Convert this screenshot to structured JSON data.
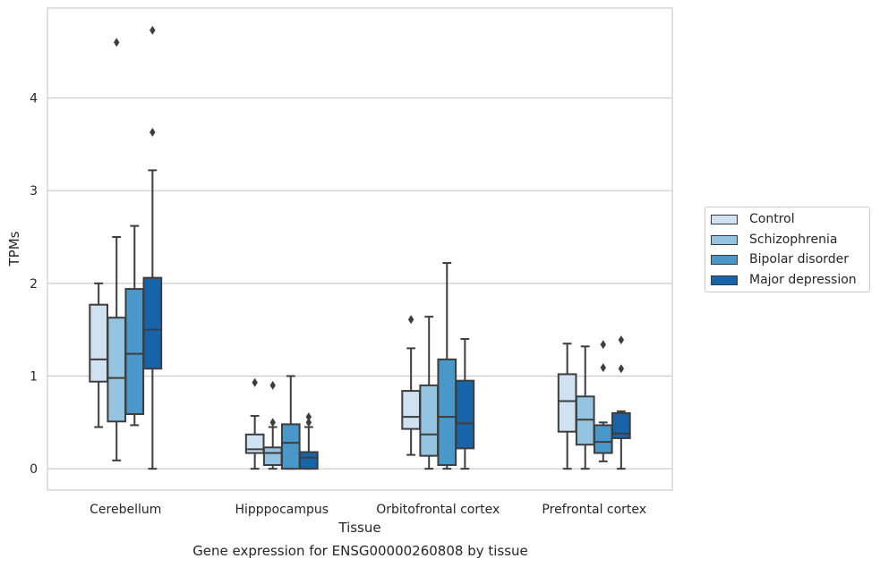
{
  "caption": "Gene expression for ENSG00000260808 by tissue",
  "chart_data": {
    "type": "box",
    "xlabel": "Tissue",
    "ylabel": "TPMs",
    "ylim": [
      -0.23,
      4.97
    ],
    "yticks": [
      0,
      1,
      2,
      3,
      4
    ],
    "grid": "horizontal",
    "legend_position": "right",
    "categories": [
      "Cerebellum",
      "Hipppocampus",
      "Orbitofrontal cortex",
      "Prefrontal cortex"
    ],
    "series": [
      {
        "name": "Control",
        "color": "#d0e1f2",
        "boxes": [
          {
            "whislo": 0.45,
            "q1": 0.94,
            "med": 1.18,
            "q3": 1.77,
            "whishi": 2.0,
            "fliers": []
          },
          {
            "whislo": 0.0,
            "q1": 0.17,
            "med": 0.21,
            "q3": 0.37,
            "whishi": 0.57,
            "fliers": [
              0.93
            ]
          },
          {
            "whislo": 0.15,
            "q1": 0.43,
            "med": 0.56,
            "q3": 0.84,
            "whishi": 1.3,
            "fliers": [
              1.61
            ]
          },
          {
            "whislo": 0.0,
            "q1": 0.4,
            "med": 0.73,
            "q3": 1.02,
            "whishi": 1.35,
            "fliers": []
          }
        ]
      },
      {
        "name": "Schizophrenia",
        "color": "#94c4df",
        "boxes": [
          {
            "whislo": 0.09,
            "q1": 0.51,
            "med": 0.98,
            "q3": 1.63,
            "whishi": 2.5,
            "fliers": [
              4.6
            ]
          },
          {
            "whislo": 0.0,
            "q1": 0.04,
            "med": 0.17,
            "q3": 0.23,
            "whishi": 0.45,
            "fliers": [
              0.5,
              0.9
            ]
          },
          {
            "whislo": 0.0,
            "q1": 0.14,
            "med": 0.37,
            "q3": 0.9,
            "whishi": 1.64,
            "fliers": []
          },
          {
            "whislo": 0.0,
            "q1": 0.26,
            "med": 0.53,
            "q3": 0.78,
            "whishi": 1.32,
            "fliers": []
          }
        ]
      },
      {
        "name": "Bipolar disorder",
        "color": "#4a98c9",
        "boxes": [
          {
            "whislo": 0.47,
            "q1": 0.59,
            "med": 1.24,
            "q3": 1.94,
            "whishi": 2.62,
            "fliers": []
          },
          {
            "whislo": 0.0,
            "q1": 0.0,
            "med": 0.28,
            "q3": 0.48,
            "whishi": 1.0,
            "fliers": []
          },
          {
            "whislo": 0.0,
            "q1": 0.04,
            "med": 0.56,
            "q3": 1.18,
            "whishi": 2.22,
            "fliers": []
          },
          {
            "whislo": 0.08,
            "q1": 0.17,
            "med": 0.29,
            "q3": 0.47,
            "whishi": 0.5,
            "fliers": [
              1.09,
              1.34
            ]
          }
        ]
      },
      {
        "name": "Major depression",
        "color": "#1764ab",
        "boxes": [
          {
            "whislo": 0.0,
            "q1": 1.08,
            "med": 1.5,
            "q3": 2.06,
            "whishi": 3.22,
            "fliers": [
              3.63,
              4.73
            ]
          },
          {
            "whislo": 0.0,
            "q1": 0.0,
            "med": 0.12,
            "q3": 0.18,
            "whishi": 0.45,
            "fliers": [
              0.5,
              0.56
            ]
          },
          {
            "whislo": 0.0,
            "q1": 0.22,
            "med": 0.49,
            "q3": 0.95,
            "whishi": 1.4,
            "fliers": []
          },
          {
            "whislo": 0.0,
            "q1": 0.33,
            "med": 0.38,
            "q3": 0.6,
            "whishi": 0.62,
            "fliers": [
              1.08,
              1.39
            ]
          }
        ]
      }
    ]
  }
}
